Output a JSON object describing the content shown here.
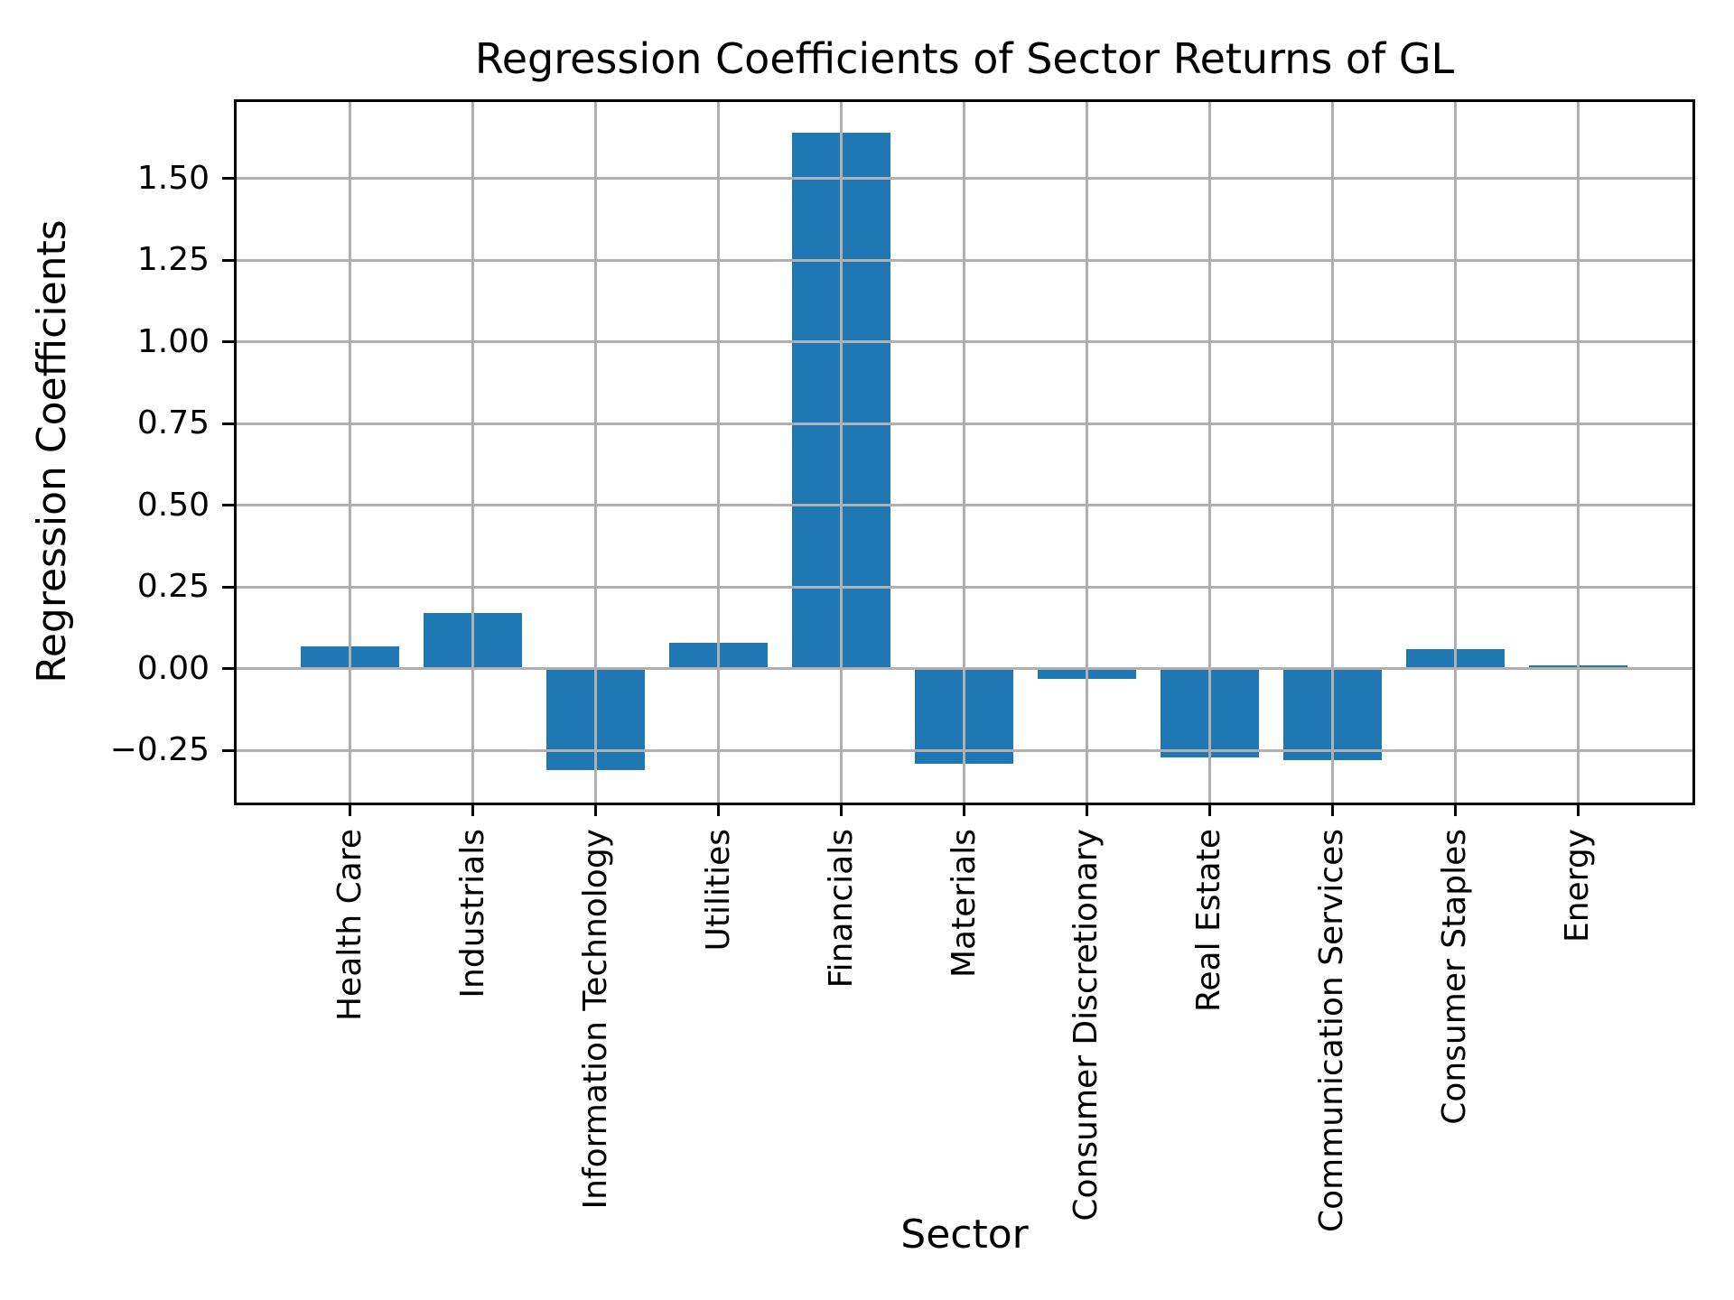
{
  "chart_data": {
    "type": "bar",
    "title": "Regression Coefficients of Sector Returns of GL",
    "xlabel": "Sector",
    "ylabel": "Regression Coefficients",
    "categories": [
      "Health Care",
      "Industrials",
      "Information Technology",
      "Utilities",
      "Financials",
      "Materials",
      "Consumer Discretionary",
      "Real Estate",
      "Communication Services",
      "Consumer Staples",
      "Energy"
    ],
    "values": [
      0.07,
      0.17,
      -0.31,
      0.08,
      1.64,
      -0.29,
      -0.03,
      -0.27,
      -0.28,
      0.06,
      0.01
    ],
    "ylim": [
      -0.412,
      1.74
    ],
    "yticks": [
      -0.25,
      0.0,
      0.25,
      0.5,
      0.75,
      1.0,
      1.25,
      1.5
    ],
    "ytick_labels": [
      "−0.25",
      "0.00",
      "0.25",
      "0.50",
      "0.75",
      "1.00",
      "1.25",
      "1.50"
    ],
    "grid": true,
    "grid_on_top": true,
    "legend": "none",
    "bar_color": "#1f77b4",
    "grid_color": "#b0b0b0",
    "axis_color": "#000000",
    "background_color": "#ffffff"
  }
}
